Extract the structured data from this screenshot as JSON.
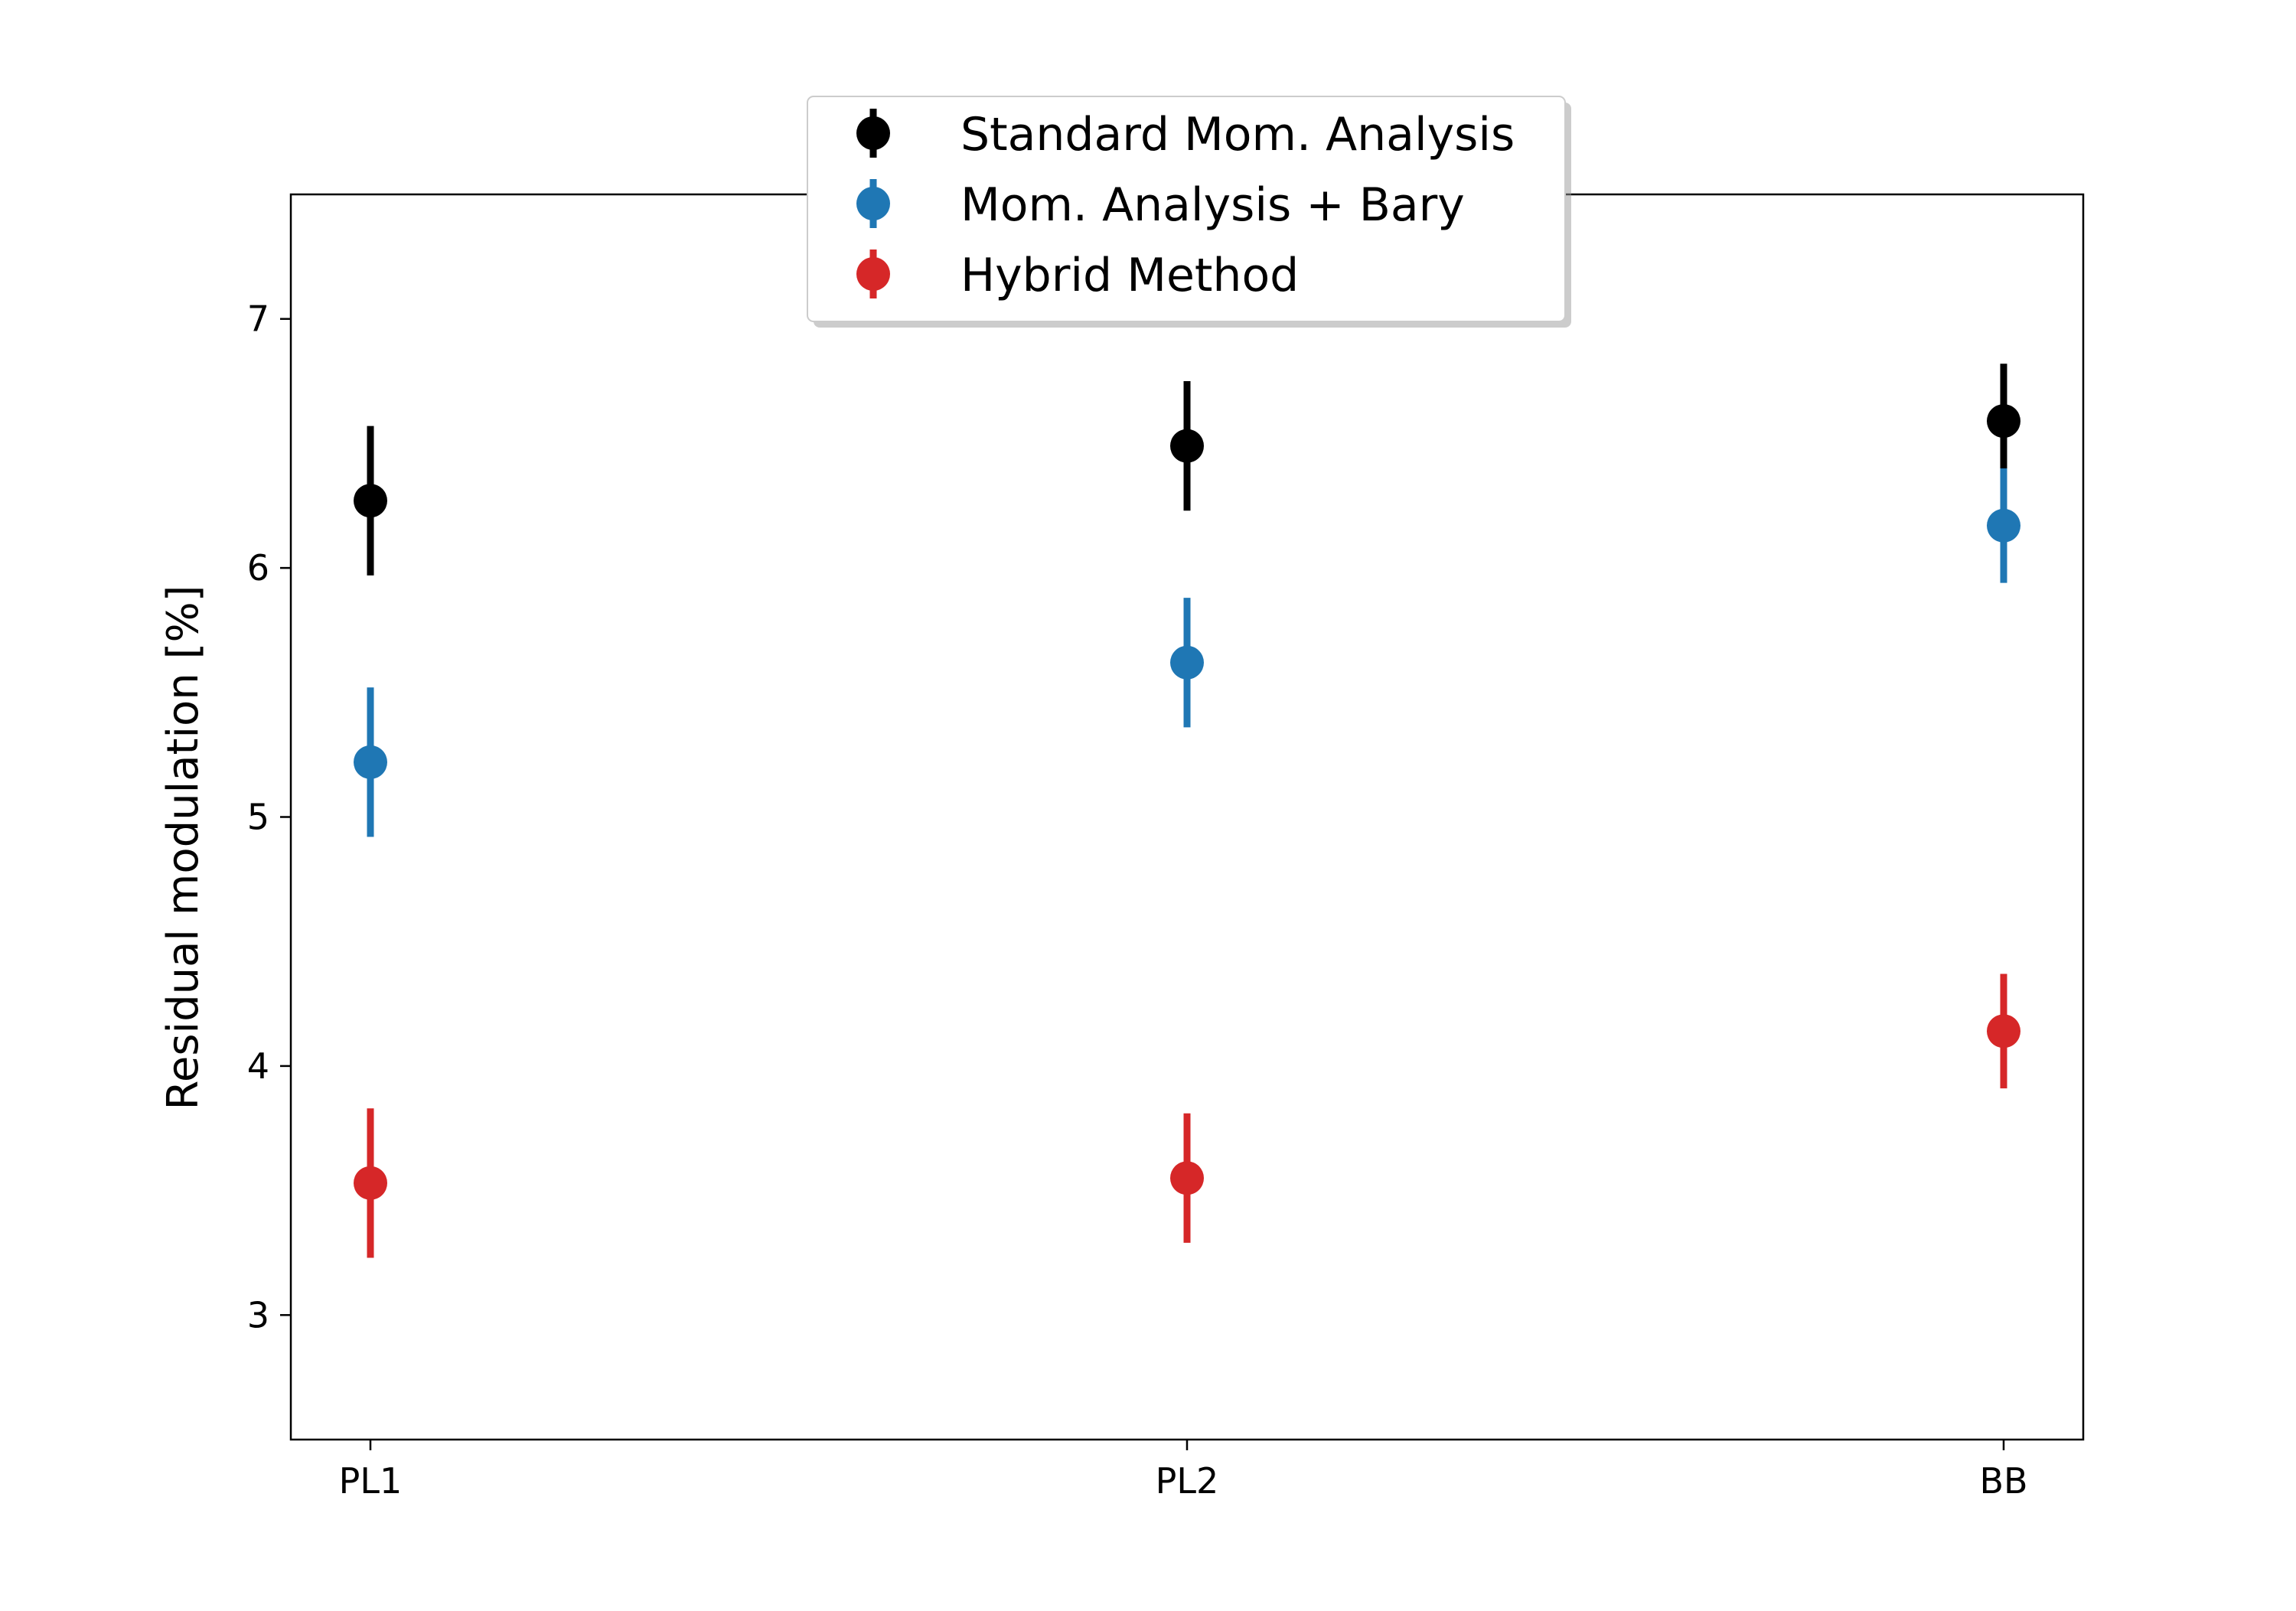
{
  "chart_data": {
    "type": "scatter",
    "title": "",
    "xlabel": "",
    "ylabel": "Residual modulation [%]",
    "categories": [
      "PL1",
      "PL2",
      "BB"
    ],
    "ylim": [
      2.5,
      7.5
    ],
    "yticks": [
      3,
      4,
      5,
      6,
      7
    ],
    "grid": false,
    "legend_position": "upper center",
    "series": [
      {
        "name": "Standard Mom. Analysis",
        "color": "#000000",
        "values": [
          6.27,
          6.49,
          6.59
        ],
        "errors": [
          0.3,
          0.26,
          0.23
        ]
      },
      {
        "name": "Mom. Analysis + Bary",
        "color": "#1f77b4",
        "values": [
          5.22,
          5.62,
          6.17
        ],
        "errors": [
          0.3,
          0.26,
          0.23
        ]
      },
      {
        "name": "Hybrid Method",
        "color": "#d62728",
        "values": [
          3.53,
          3.55,
          4.14
        ],
        "errors": [
          0.3,
          0.26,
          0.23
        ]
      }
    ]
  }
}
